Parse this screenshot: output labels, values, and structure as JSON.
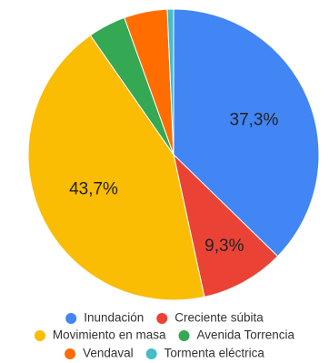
{
  "chart_data": {
    "type": "pie",
    "title": "",
    "slices": [
      {
        "label": "Inundación",
        "value": 37.3,
        "color": "#4285F4",
        "data_label": "37,3%"
      },
      {
        "label": "Creciente súbita",
        "value": 9.3,
        "color": "#EA4335",
        "data_label": "9,3%"
      },
      {
        "label": "Movimiento en masa",
        "value": 43.7,
        "color": "#FBBC04",
        "data_label": "43,7%"
      },
      {
        "label": "Avenida Torrencial",
        "value": 4.2,
        "color": "#34A853",
        "data_label": ""
      },
      {
        "label": "Vendaval",
        "value": 4.8,
        "color": "#FF6D01",
        "data_label": ""
      },
      {
        "label": "Tormenta eléctrica",
        "value": 0.7,
        "color": "#46BDC6",
        "data_label": ""
      }
    ],
    "legend_position": "bottom"
  },
  "legend": {
    "rows": [
      [
        {
          "label": "Inundación",
          "color": "#4285F4"
        },
        {
          "label": "Creciente súbita",
          "color": "#EA4335"
        }
      ],
      [
        {
          "label": "Movimiento en masa",
          "color": "#FBBC04"
        },
        {
          "label": "Avenida Torrencia",
          "color": "#34A853"
        }
      ],
      [
        {
          "label": "Vendaval",
          "color": "#FF6D01"
        },
        {
          "label": "Tormenta eléctrica",
          "color": "#46BDC6"
        }
      ]
    ]
  }
}
